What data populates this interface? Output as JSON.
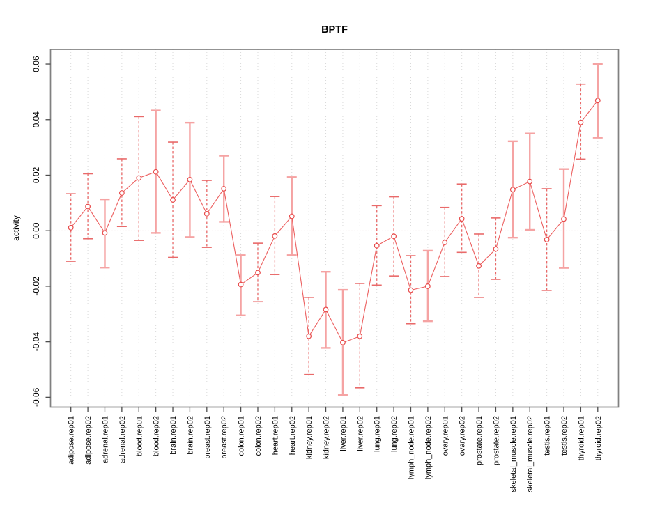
{
  "chart_data": {
    "type": "scatter",
    "title": "BPTF",
    "xlabel": "",
    "ylabel": "activity",
    "ylim": [
      -0.065,
      0.065
    ],
    "yticks": [
      -0.06,
      -0.04,
      -0.02,
      0.0,
      0.02,
      0.04,
      0.06
    ],
    "ytick_labels": [
      "-0.06",
      "-0.04",
      "-0.02",
      "0.00",
      "0.02",
      "0.04",
      "0.06"
    ],
    "grid": "vertical-dotted-per-category-plus-dotted-zero-line",
    "legend": "none",
    "marker": "open-circle",
    "categories": [
      "adipose.rep01",
      "adipose.rep02",
      "adrenal.rep01",
      "adrenal.rep02",
      "blood.rep01",
      "blood.rep02",
      "brain.rep01",
      "brain.rep02",
      "breast.rep01",
      "breast.rep02",
      "colon.rep01",
      "colon.rep02",
      "heart.rep01",
      "heart.rep02",
      "kidney.rep01",
      "kidney.rep02",
      "liver.rep01",
      "liver.rep02",
      "lung.rep01",
      "lung.rep02",
      "lymph_node.rep01",
      "lymph_node.rep02",
      "ovary.rep01",
      "ovary.rep02",
      "prostate.rep01",
      "prostate.rep02",
      "skeletal_muscle.rep01",
      "skeletal_muscle.rep02",
      "testis.rep01",
      "testis.rep02",
      "thyroid.rep01",
      "thyroid.rep02"
    ],
    "series": [
      {
        "name": "activity",
        "values": [
          0.0011,
          0.0087,
          -0.0008,
          0.0136,
          0.019,
          0.0212,
          0.0111,
          0.0184,
          0.0061,
          0.0151,
          -0.0194,
          -0.0151,
          -0.0019,
          0.0052,
          -0.038,
          -0.0284,
          -0.0403,
          -0.038,
          -0.0054,
          -0.002,
          -0.0214,
          -0.02,
          -0.0042,
          0.0043,
          -0.0127,
          -0.0066,
          0.0148,
          0.0177,
          -0.0032,
          0.0042,
          0.039,
          0.0469
        ],
        "ci_low": [
          -0.011,
          -0.0029,
          -0.0133,
          0.0015,
          -0.0035,
          -0.0008,
          -0.0096,
          -0.0023,
          -0.006,
          0.0032,
          -0.0305,
          -0.0256,
          -0.0158,
          -0.0088,
          -0.0518,
          -0.0422,
          -0.0592,
          -0.0566,
          -0.0196,
          -0.0163,
          -0.0335,
          -0.0326,
          -0.0165,
          -0.0078,
          -0.024,
          -0.0175,
          -0.0025,
          0.0003,
          -0.0215,
          -0.0134,
          0.0258,
          0.0335
        ],
        "ci_high": [
          0.0133,
          0.0205,
          0.0113,
          0.0259,
          0.0411,
          0.0433,
          0.0319,
          0.0389,
          0.0181,
          0.027,
          -0.0088,
          -0.0045,
          0.0123,
          0.0193,
          -0.024,
          -0.0148,
          -0.0213,
          -0.019,
          0.009,
          0.0122,
          -0.009,
          -0.0072,
          0.0084,
          0.0168,
          -0.0012,
          0.0046,
          0.0322,
          0.035,
          0.0151,
          0.0222,
          0.0528,
          0.06
        ],
        "bar_styles": [
          "dashed",
          "dashed",
          "solid",
          "dashed",
          "dashed",
          "solid",
          "dashed",
          "solid",
          "dashed",
          "solid",
          "solid",
          "dashed",
          "dashed",
          "solid",
          "dashed",
          "solid",
          "solid",
          "dashed",
          "dashed",
          "dashed",
          "dashed",
          "solid",
          "dashed",
          "dashed",
          "dashed",
          "dashed",
          "solid",
          "solid",
          "dashed",
          "solid",
          "dashed",
          "solid"
        ]
      }
    ],
    "colors": {
      "point": "#e84a4a",
      "line": "#ec5f5f",
      "error_bar_solid": "#f5a3a3",
      "error_bar_dashed": "#e96a6a",
      "gridline": "#d9d9d9",
      "zero_line": "#e6d7d7",
      "plot_border": "#808080",
      "tick": "#4d4d4d",
      "text": "#000000",
      "background": "#ffffff"
    }
  }
}
